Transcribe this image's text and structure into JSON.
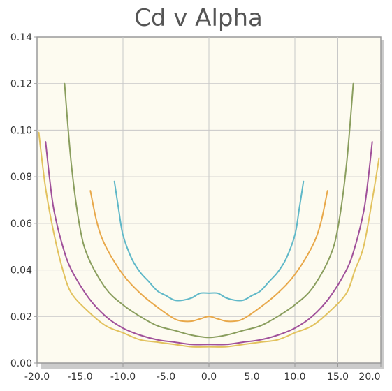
{
  "chart_data": {
    "type": "line",
    "title": "Cd v Alpha",
    "xlabel": "",
    "ylabel": "",
    "xlim": [
      -20,
      20
    ],
    "ylim": [
      0,
      0.14
    ],
    "x_ticks": [
      "-20.0",
      "-15.0",
      "-10.0",
      "-5.0",
      "0.0",
      "5.0",
      "10.0",
      "15.0",
      "20.0"
    ],
    "y_ticks": [
      "0.00",
      "0.02",
      "0.04",
      "0.06",
      "0.08",
      "0.10",
      "0.12",
      "0.14"
    ],
    "grid": true,
    "legend": "none",
    "colors": {
      "plot_background": "#fdfbf0",
      "grid": "#c8c8c8",
      "axis": "#9a9a9a",
      "shadow": "#b5b5b5"
    },
    "series": [
      {
        "color": "#5fb8c8",
        "points": [
          [
            -11.0,
            0.078
          ],
          [
            -10.5,
            0.066
          ],
          [
            -10.0,
            0.055
          ],
          [
            -9.0,
            0.045
          ],
          [
            -8.0,
            0.039
          ],
          [
            -7.0,
            0.035
          ],
          [
            -6.0,
            0.031
          ],
          [
            -5.0,
            0.029
          ],
          [
            -4.0,
            0.027
          ],
          [
            -3.0,
            0.027
          ],
          [
            -2.0,
            0.028
          ],
          [
            -1.0,
            0.03
          ],
          [
            0.0,
            0.03
          ],
          [
            1.0,
            0.03
          ],
          [
            2.0,
            0.028
          ],
          [
            3.0,
            0.027
          ],
          [
            4.0,
            0.027
          ],
          [
            5.0,
            0.029
          ],
          [
            6.0,
            0.031
          ],
          [
            7.0,
            0.035
          ],
          [
            8.0,
            0.039
          ],
          [
            9.0,
            0.045
          ],
          [
            10.0,
            0.055
          ],
          [
            10.5,
            0.066
          ],
          [
            11.0,
            0.078
          ]
        ]
      },
      {
        "color": "#e8a84a",
        "points": [
          [
            -13.8,
            0.074
          ],
          [
            -13.0,
            0.06
          ],
          [
            -12.0,
            0.05
          ],
          [
            -10.0,
            0.038
          ],
          [
            -8.0,
            0.03
          ],
          [
            -6.0,
            0.024
          ],
          [
            -4.0,
            0.019
          ],
          [
            -3.0,
            0.018
          ],
          [
            -2.0,
            0.018
          ],
          [
            -1.0,
            0.019
          ],
          [
            0.0,
            0.02
          ],
          [
            1.0,
            0.019
          ],
          [
            2.0,
            0.018
          ],
          [
            3.0,
            0.018
          ],
          [
            4.0,
            0.019
          ],
          [
            6.0,
            0.024
          ],
          [
            8.0,
            0.03
          ],
          [
            10.0,
            0.038
          ],
          [
            12.0,
            0.05
          ],
          [
            13.0,
            0.06
          ],
          [
            13.8,
            0.074
          ]
        ]
      },
      {
        "color": "#8a9e5e",
        "points": [
          [
            -16.8,
            0.12
          ],
          [
            -16.0,
            0.085
          ],
          [
            -15.0,
            0.058
          ],
          [
            -14.0,
            0.045
          ],
          [
            -12.0,
            0.032
          ],
          [
            -10.0,
            0.025
          ],
          [
            -8.0,
            0.02
          ],
          [
            -6.0,
            0.016
          ],
          [
            -4.0,
            0.014
          ],
          [
            -2.0,
            0.012
          ],
          [
            0.0,
            0.011
          ],
          [
            2.0,
            0.012
          ],
          [
            4.0,
            0.014
          ],
          [
            6.0,
            0.016
          ],
          [
            8.0,
            0.02
          ],
          [
            10.0,
            0.025
          ],
          [
            12.0,
            0.032
          ],
          [
            14.0,
            0.045
          ],
          [
            15.0,
            0.058
          ],
          [
            16.0,
            0.085
          ],
          [
            16.8,
            0.12
          ]
        ]
      },
      {
        "color": "#a0509a",
        "points": [
          [
            -19.0,
            0.095
          ],
          [
            -18.5,
            0.078
          ],
          [
            -18.0,
            0.065
          ],
          [
            -17.0,
            0.05
          ],
          [
            -16.0,
            0.04
          ],
          [
            -14.0,
            0.028
          ],
          [
            -12.0,
            0.02
          ],
          [
            -10.0,
            0.015
          ],
          [
            -8.0,
            0.012
          ],
          [
            -6.0,
            0.01
          ],
          [
            -4.0,
            0.009
          ],
          [
            -2.0,
            0.008
          ],
          [
            0.0,
            0.008
          ],
          [
            2.0,
            0.008
          ],
          [
            4.0,
            0.009
          ],
          [
            6.0,
            0.01
          ],
          [
            8.0,
            0.012
          ],
          [
            10.0,
            0.015
          ],
          [
            12.0,
            0.02
          ],
          [
            14.0,
            0.028
          ],
          [
            16.0,
            0.04
          ],
          [
            17.0,
            0.05
          ],
          [
            18.0,
            0.065
          ],
          [
            18.5,
            0.078
          ],
          [
            19.0,
            0.095
          ]
        ]
      },
      {
        "color": "#e2c25e",
        "points": [
          [
            -19.8,
            0.099
          ],
          [
            -19.0,
            0.075
          ],
          [
            -18.0,
            0.055
          ],
          [
            -17.0,
            0.04
          ],
          [
            -16.0,
            0.03
          ],
          [
            -14.0,
            0.022
          ],
          [
            -12.0,
            0.016
          ],
          [
            -10.0,
            0.013
          ],
          [
            -8.0,
            0.01
          ],
          [
            -6.0,
            0.009
          ],
          [
            -4.0,
            0.008
          ],
          [
            -2.0,
            0.007
          ],
          [
            0.0,
            0.007
          ],
          [
            2.0,
            0.007
          ],
          [
            4.0,
            0.008
          ],
          [
            6.0,
            0.009
          ],
          [
            8.0,
            0.01
          ],
          [
            10.0,
            0.013
          ],
          [
            12.0,
            0.016
          ],
          [
            14.0,
            0.022
          ],
          [
            16.0,
            0.03
          ],
          [
            17.0,
            0.04
          ],
          [
            18.0,
            0.05
          ],
          [
            19.0,
            0.07
          ],
          [
            19.8,
            0.088
          ]
        ]
      }
    ]
  }
}
